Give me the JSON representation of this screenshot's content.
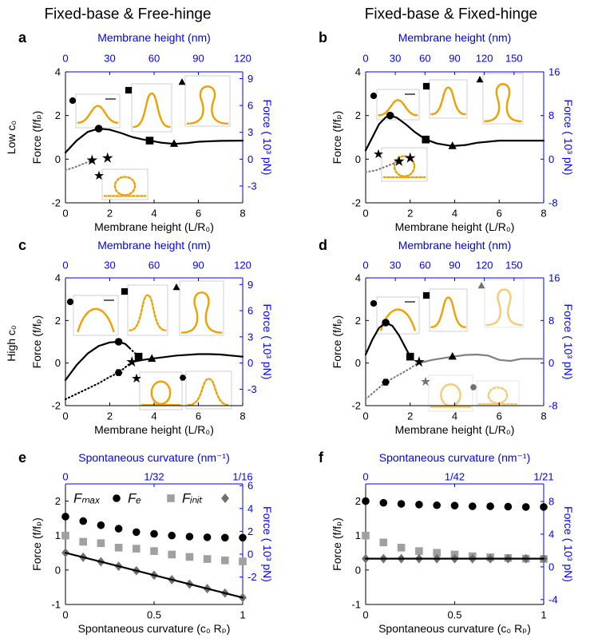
{
  "column_titles": [
    "Fixed-base & Free-hinge",
    "Fixed-base & Fixed-hinge"
  ],
  "row_labels": [
    "Low c₀",
    "High c₀"
  ],
  "chart_data": [
    {
      "type": "line",
      "label": "a",
      "xlabel": "Membrane height (L/R₀)",
      "ylabel": "Force (f/fₚ)",
      "x2label": "Membrane height (nm)",
      "y2label": "Force ( 10³ pN)",
      "axis2_color": "#0000ff",
      "xlim": [
        0,
        8
      ],
      "xticks": [
        0,
        2,
        4,
        6,
        8
      ],
      "ylim": [
        -2,
        4
      ],
      "yticks": [
        -2,
        0,
        2,
        4
      ],
      "x2lim": [
        0,
        120
      ],
      "x2ticks": [
        0,
        30,
        60,
        90,
        120
      ],
      "y2lim": [
        -4.88,
        9.76
      ],
      "y2ticks": [
        -3,
        0,
        3,
        6,
        9
      ],
      "series": [
        {
          "color": "#000000",
          "linestyle": "solid",
          "marker": "none",
          "x": [
            0,
            0.5,
            1,
            1.5,
            2,
            2.5,
            3,
            3.5,
            3.8,
            4.3,
            4.9,
            5.5,
            6,
            7,
            8
          ],
          "values": [
            0.3,
            0.85,
            1.25,
            1.4,
            1.35,
            1.2,
            1.02,
            0.9,
            0.85,
            0.76,
            0.7,
            0.74,
            0.8,
            0.84,
            0.85
          ]
        },
        {
          "color": "#808080",
          "linestyle": "dotted",
          "marker": "none",
          "x": [
            0,
            0.4,
            0.8,
            1.2
          ],
          "values": [
            -0.5,
            -0.38,
            -0.22,
            -0.05
          ]
        },
        {
          "color": "#000000",
          "linestyle": "none",
          "marker": "circle",
          "x": [
            1.5
          ],
          "values": [
            1.4
          ]
        },
        {
          "color": "#000000",
          "linestyle": "none",
          "marker": "square",
          "x": [
            3.8
          ],
          "values": [
            0.85
          ]
        },
        {
          "color": "#000000",
          "linestyle": "none",
          "marker": "triangle",
          "x": [
            4.9
          ],
          "values": [
            0.7
          ]
        },
        {
          "color": "#000000",
          "linestyle": "none",
          "marker": "star",
          "x": [
            1.2,
            1.9
          ],
          "values": [
            -0.05,
            0.05
          ]
        }
      ]
    },
    {
      "type": "line",
      "label": "b",
      "xlabel": "Membrane height (L/R₀)",
      "ylabel": "Force (f/fₚ)",
      "x2label": "Membrane height (nm)",
      "y2label": "Force ( 10³ pN)",
      "axis2_color": "#0000ff",
      "xlim": [
        0,
        8
      ],
      "xticks": [
        0,
        2,
        4,
        6,
        8
      ],
      "ylim": [
        -2,
        4
      ],
      "yticks": [
        -2,
        0,
        2,
        4
      ],
      "x2lim": [
        0,
        180
      ],
      "x2ticks": [
        0,
        30,
        60,
        90,
        120,
        150
      ],
      "y2lim": [
        -8,
        16
      ],
      "y2ticks": [
        -8,
        0,
        8,
        16
      ],
      "series": [
        {
          "color": "#000000",
          "linestyle": "solid",
          "marker": "none",
          "x": [
            0,
            0.3,
            0.6,
            0.9,
            1.1,
            1.4,
            1.8,
            2.2,
            2.7,
            3.2,
            3.9,
            4.5,
            5,
            6,
            7,
            8
          ],
          "values": [
            0.4,
            1.0,
            1.6,
            1.92,
            2.0,
            1.9,
            1.6,
            1.25,
            0.9,
            0.72,
            0.6,
            0.65,
            0.75,
            0.85,
            0.85,
            0.85
          ]
        },
        {
          "color": "#808080",
          "linestyle": "dotted",
          "marker": "none",
          "x": [
            0,
            0.5,
            1,
            1.5
          ],
          "values": [
            -0.6,
            -0.5,
            -0.3,
            -0.1
          ]
        },
        {
          "color": "#000000",
          "linestyle": "none",
          "marker": "circle",
          "x": [
            1.1
          ],
          "values": [
            2.0
          ]
        },
        {
          "color": "#000000",
          "linestyle": "none",
          "marker": "square",
          "x": [
            2.7
          ],
          "values": [
            0.9
          ]
        },
        {
          "color": "#000000",
          "linestyle": "none",
          "marker": "triangle",
          "x": [
            3.9
          ],
          "values": [
            0.6
          ]
        },
        {
          "color": "#000000",
          "linestyle": "none",
          "marker": "star",
          "x": [
            1.5,
            2.0
          ],
          "values": [
            -0.1,
            0.05
          ]
        }
      ]
    },
    {
      "type": "line",
      "label": "c",
      "xlabel": "Membrane height (L/R₀)",
      "ylabel": "Force (f/fₚ)",
      "x2label": "Membrane height (nm)",
      "y2label": "Force ( 10³ pN)",
      "axis2_color": "#0000ff",
      "xlim": [
        0,
        8
      ],
      "xticks": [
        0,
        2,
        4,
        6,
        8
      ],
      "ylim": [
        -2,
        4
      ],
      "yticks": [
        -2,
        0,
        2,
        4
      ],
      "x2lim": [
        0,
        120
      ],
      "x2ticks": [
        0,
        30,
        60,
        90,
        120
      ],
      "y2lim": [
        -4.88,
        9.76
      ],
      "y2ticks": [
        -3,
        0,
        3,
        6,
        9
      ],
      "series": [
        {
          "color": "#000000",
          "linestyle": "solid",
          "marker": "none",
          "x": [
            0,
            0.5,
            1,
            1.5,
            2,
            2.4,
            2.7,
            2.9
          ],
          "values": [
            -0.8,
            -0.1,
            0.45,
            0.8,
            0.97,
            1.0,
            0.9,
            0.7
          ]
        },
        {
          "color": "#000000",
          "linestyle": "dotted",
          "marker": "none",
          "x": [
            2.9,
            3.1,
            3.3
          ],
          "values": [
            0.7,
            0.5,
            0.3
          ]
        },
        {
          "color": "#000000",
          "linestyle": "solid",
          "marker": "none",
          "x": [
            3.0,
            3.5,
            4,
            5,
            6,
            6.5,
            7,
            8
          ],
          "values": [
            0.05,
            0.15,
            0.22,
            0.35,
            0.42,
            0.42,
            0.4,
            0.3
          ]
        },
        {
          "color": "#000000",
          "linestyle": "dotted",
          "marker": "none",
          "x": [
            0,
            0.5,
            1,
            1.5,
            2,
            2.4,
            2.7,
            3.0
          ],
          "values": [
            -1.7,
            -1.45,
            -1.2,
            -0.95,
            -0.65,
            -0.45,
            -0.2,
            0.05
          ]
        },
        {
          "color": "#000000",
          "linestyle": "none",
          "marker": "circle",
          "x": [
            2.4
          ],
          "values": [
            1.0
          ]
        },
        {
          "color": "#000000",
          "linestyle": "none",
          "marker": "square",
          "x": [
            3.3
          ],
          "values": [
            0.3
          ]
        },
        {
          "color": "#000000",
          "linestyle": "none",
          "marker": "triangle",
          "x": [
            3.9
          ],
          "values": [
            0.2
          ]
        },
        {
          "color": "#000000",
          "linestyle": "none",
          "marker": "star",
          "x": [
            3.0
          ],
          "values": [
            0.05
          ]
        },
        {
          "color": "#000000",
          "linestyle": "none",
          "marker": "hexagon",
          "x": [
            2.4
          ],
          "values": [
            -0.45
          ]
        }
      ]
    },
    {
      "type": "line",
      "label": "d",
      "xlabel": "Membrane height (L/R₀)",
      "ylabel": "Force (f/fₚ)",
      "x2label": "Membrane height (nm)",
      "y2label": "Force ( 10³ pN)",
      "axis2_color": "#0000ff",
      "xlim": [
        0,
        8
      ],
      "xticks": [
        0,
        2,
        4,
        6,
        8
      ],
      "ylim": [
        -2,
        4
      ],
      "yticks": [
        -2,
        0,
        2,
        4
      ],
      "x2lim": [
        0,
        180
      ],
      "x2ticks": [
        0,
        30,
        60,
        90,
        120,
        150
      ],
      "y2lim": [
        -8,
        16
      ],
      "y2ticks": [
        -8,
        0,
        8,
        16
      ],
      "series": [
        {
          "color": "#000000",
          "linestyle": "solid",
          "marker": "none",
          "x": [
            0,
            0.3,
            0.6,
            0.9,
            1.2,
            1.5,
            1.8,
            2.0
          ],
          "values": [
            0.4,
            1.1,
            1.65,
            1.9,
            1.75,
            1.3,
            0.7,
            0.3
          ]
        },
        {
          "color": "#808080",
          "linestyle": "solid",
          "marker": "none",
          "x": [
            2.4,
            3,
            3.9,
            4.5,
            5,
            5.5,
            6,
            6.5,
            7,
            8
          ],
          "values": [
            0,
            0.15,
            0.3,
            0.38,
            0.4,
            0.35,
            0.15,
            0.1,
            0.2,
            0.2
          ]
        },
        {
          "color": "#808080",
          "linestyle": "dotted",
          "marker": "none",
          "x": [
            0,
            0.5,
            0.9,
            1.5,
            2,
            2.4
          ],
          "values": [
            -1.7,
            -1.25,
            -0.9,
            -0.55,
            -0.25,
            0.05
          ]
        },
        {
          "color": "#000000",
          "linestyle": "none",
          "marker": "circle",
          "x": [
            0.9
          ],
          "values": [
            1.9
          ]
        },
        {
          "color": "#000000",
          "linestyle": "none",
          "marker": "square",
          "x": [
            2.0
          ],
          "values": [
            0.3
          ]
        },
        {
          "color": "#000000",
          "linestyle": "none",
          "marker": "triangle",
          "x": [
            3.9
          ],
          "values": [
            0.3
          ]
        },
        {
          "color": "#000000",
          "linestyle": "none",
          "marker": "star",
          "x": [
            2.4
          ],
          "values": [
            0.05
          ]
        },
        {
          "color": "#000000",
          "linestyle": "none",
          "marker": "hexagon",
          "x": [
            0.9
          ],
          "values": [
            -0.9
          ]
        }
      ]
    },
    {
      "type": "scatter",
      "label": "e",
      "xlabel": "Spontaneous curvature (c₀ Rₚ)",
      "ylabel": "Force (f/fₚ)",
      "x2label": "Spontaneous curvature (nm⁻¹)",
      "y2label": "Force ( 10³ pN)",
      "axis2_color": "#0000ff",
      "xlim": [
        0,
        1
      ],
      "xticks": [
        0,
        0.5,
        1
      ],
      "ylim": [
        -1,
        2.5
      ],
      "yticks": [
        -1,
        0,
        1,
        2
      ],
      "x2lim": [
        0,
        0.0625
      ],
      "x2ticks": [
        0,
        {
          "value": 0.03125,
          "label": "1/32"
        },
        {
          "value": 0.0625,
          "label": "1/16"
        }
      ],
      "y2lim": [
        -4.4,
        6.15
      ],
      "y2ticks": [
        -2,
        0,
        2,
        4,
        6
      ],
      "series": [
        {
          "name": "Fₘₐₓ",
          "color": "#000000",
          "linestyle": "none",
          "marker": "circle",
          "x": [
            0,
            0.1,
            0.2,
            0.3,
            0.4,
            0.5,
            0.6,
            0.7,
            0.8,
            0.9,
            1
          ],
          "values": [
            1.55,
            1.42,
            1.3,
            1.2,
            1.1,
            1.05,
            1.0,
            0.97,
            0.95,
            0.94,
            0.94
          ]
        },
        {
          "name": "Fₑ",
          "color": "#a0a0a0",
          "linestyle": "none",
          "marker": "square",
          "x": [
            0,
            0.1,
            0.2,
            0.3,
            0.4,
            0.5,
            0.6,
            0.7,
            0.8,
            0.9,
            1
          ],
          "values": [
            1.0,
            0.82,
            0.78,
            0.65,
            0.62,
            0.55,
            0.45,
            0.38,
            0.32,
            0.28,
            0.25
          ]
        },
        {
          "name": "Fᵢₙᵢₜ",
          "color": "#707070",
          "linestyle": "none",
          "marker": "diamond",
          "x": [
            0,
            0.1,
            0.2,
            0.3,
            0.4,
            0.5,
            0.6,
            0.7,
            0.8,
            0.9,
            1
          ],
          "values": [
            0.5,
            0.37,
            0.24,
            0.11,
            -0.02,
            -0.15,
            -0.28,
            -0.41,
            -0.54,
            -0.67,
            -0.8
          ]
        },
        {
          "color": "#000000",
          "linestyle": "solid",
          "marker": "none",
          "x": [
            0,
            1
          ],
          "values": [
            0.5,
            -0.8
          ]
        }
      ]
    },
    {
      "type": "scatter",
      "label": "f",
      "xlabel": "Spontaneous curvature (c₀ Rₚ)",
      "ylabel": "Force (f/fₚ)",
      "x2label": "Spontaneous curvature (nm⁻¹)",
      "y2label": "Force ( 10³ pN)",
      "axis2_color": "#0000ff",
      "xlim": [
        0,
        1
      ],
      "xticks": [
        0,
        0.5,
        1
      ],
      "ylim": [
        -1,
        2.5
      ],
      "yticks": [
        -1,
        0,
        1,
        2
      ],
      "x2lim": [
        0,
        0.047619
      ],
      "x2ticks": [
        0,
        {
          "value": 0.02381,
          "label": "1/42"
        },
        {
          "value": 0.047619,
          "label": "1/21"
        }
      ],
      "y2lim": [
        -4.6,
        10.15
      ],
      "y2ticks": [
        -4,
        0,
        4,
        8
      ],
      "series": [
        {
          "color": "#000000",
          "linestyle": "none",
          "marker": "circle",
          "x": [
            0,
            0.1,
            0.2,
            0.3,
            0.4,
            0.5,
            0.6,
            0.7,
            0.8,
            0.9,
            1
          ],
          "values": [
            2.0,
            1.95,
            1.92,
            1.9,
            1.88,
            1.87,
            1.85,
            1.85,
            1.84,
            1.83,
            1.83
          ]
        },
        {
          "color": "#a0a0a0",
          "linestyle": "none",
          "marker": "square",
          "x": [
            0,
            0.1,
            0.2,
            0.3,
            0.4,
            0.5,
            0.6,
            0.7,
            0.8,
            0.9,
            1
          ],
          "values": [
            1.0,
            0.8,
            0.65,
            0.55,
            0.5,
            0.45,
            0.4,
            0.37,
            0.35,
            0.33,
            0.32
          ]
        },
        {
          "color": "#707070",
          "linestyle": "none",
          "marker": "diamond",
          "x": [
            0,
            0.1,
            0.2,
            0.3,
            0.4,
            0.5,
            0.6,
            0.7,
            0.8,
            0.9,
            1
          ],
          "values": [
            0.33,
            0.33,
            0.33,
            0.33,
            0.33,
            0.33,
            0.33,
            0.33,
            0.33,
            0.33,
            0.33
          ]
        },
        {
          "color": "#000000",
          "linestyle": "solid",
          "marker": "none",
          "x": [
            0,
            1
          ],
          "values": [
            0.33,
            0.33
          ]
        }
      ]
    }
  ]
}
